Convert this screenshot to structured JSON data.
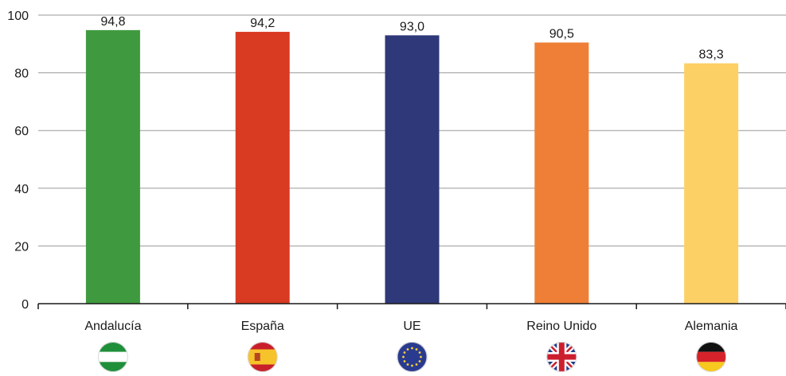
{
  "chart_data": {
    "type": "bar",
    "categories": [
      "Andalucía",
      "España",
      "UE",
      "Reino Unido",
      "Alemania"
    ],
    "values": [
      94.8,
      94.2,
      93.0,
      90.5,
      83.3
    ],
    "value_labels": [
      "94,8",
      "94,2",
      "93,0",
      "90,5",
      "83,3"
    ],
    "bar_colors": [
      "#3f9a3f",
      "#d93a22",
      "#2f3878",
      "#ef7f36",
      "#fdd065"
    ],
    "icons": [
      "andalusia-flag-icon",
      "spain-flag-icon",
      "eu-flag-icon",
      "uk-flag-icon",
      "germany-flag-icon"
    ],
    "ylim": [
      0,
      100
    ],
    "yticks": [
      0,
      20,
      40,
      60,
      80,
      100
    ],
    "ytick_labels": [
      "0",
      "20",
      "40",
      "60",
      "80",
      "100"
    ],
    "grid": true,
    "legend": "none"
  }
}
